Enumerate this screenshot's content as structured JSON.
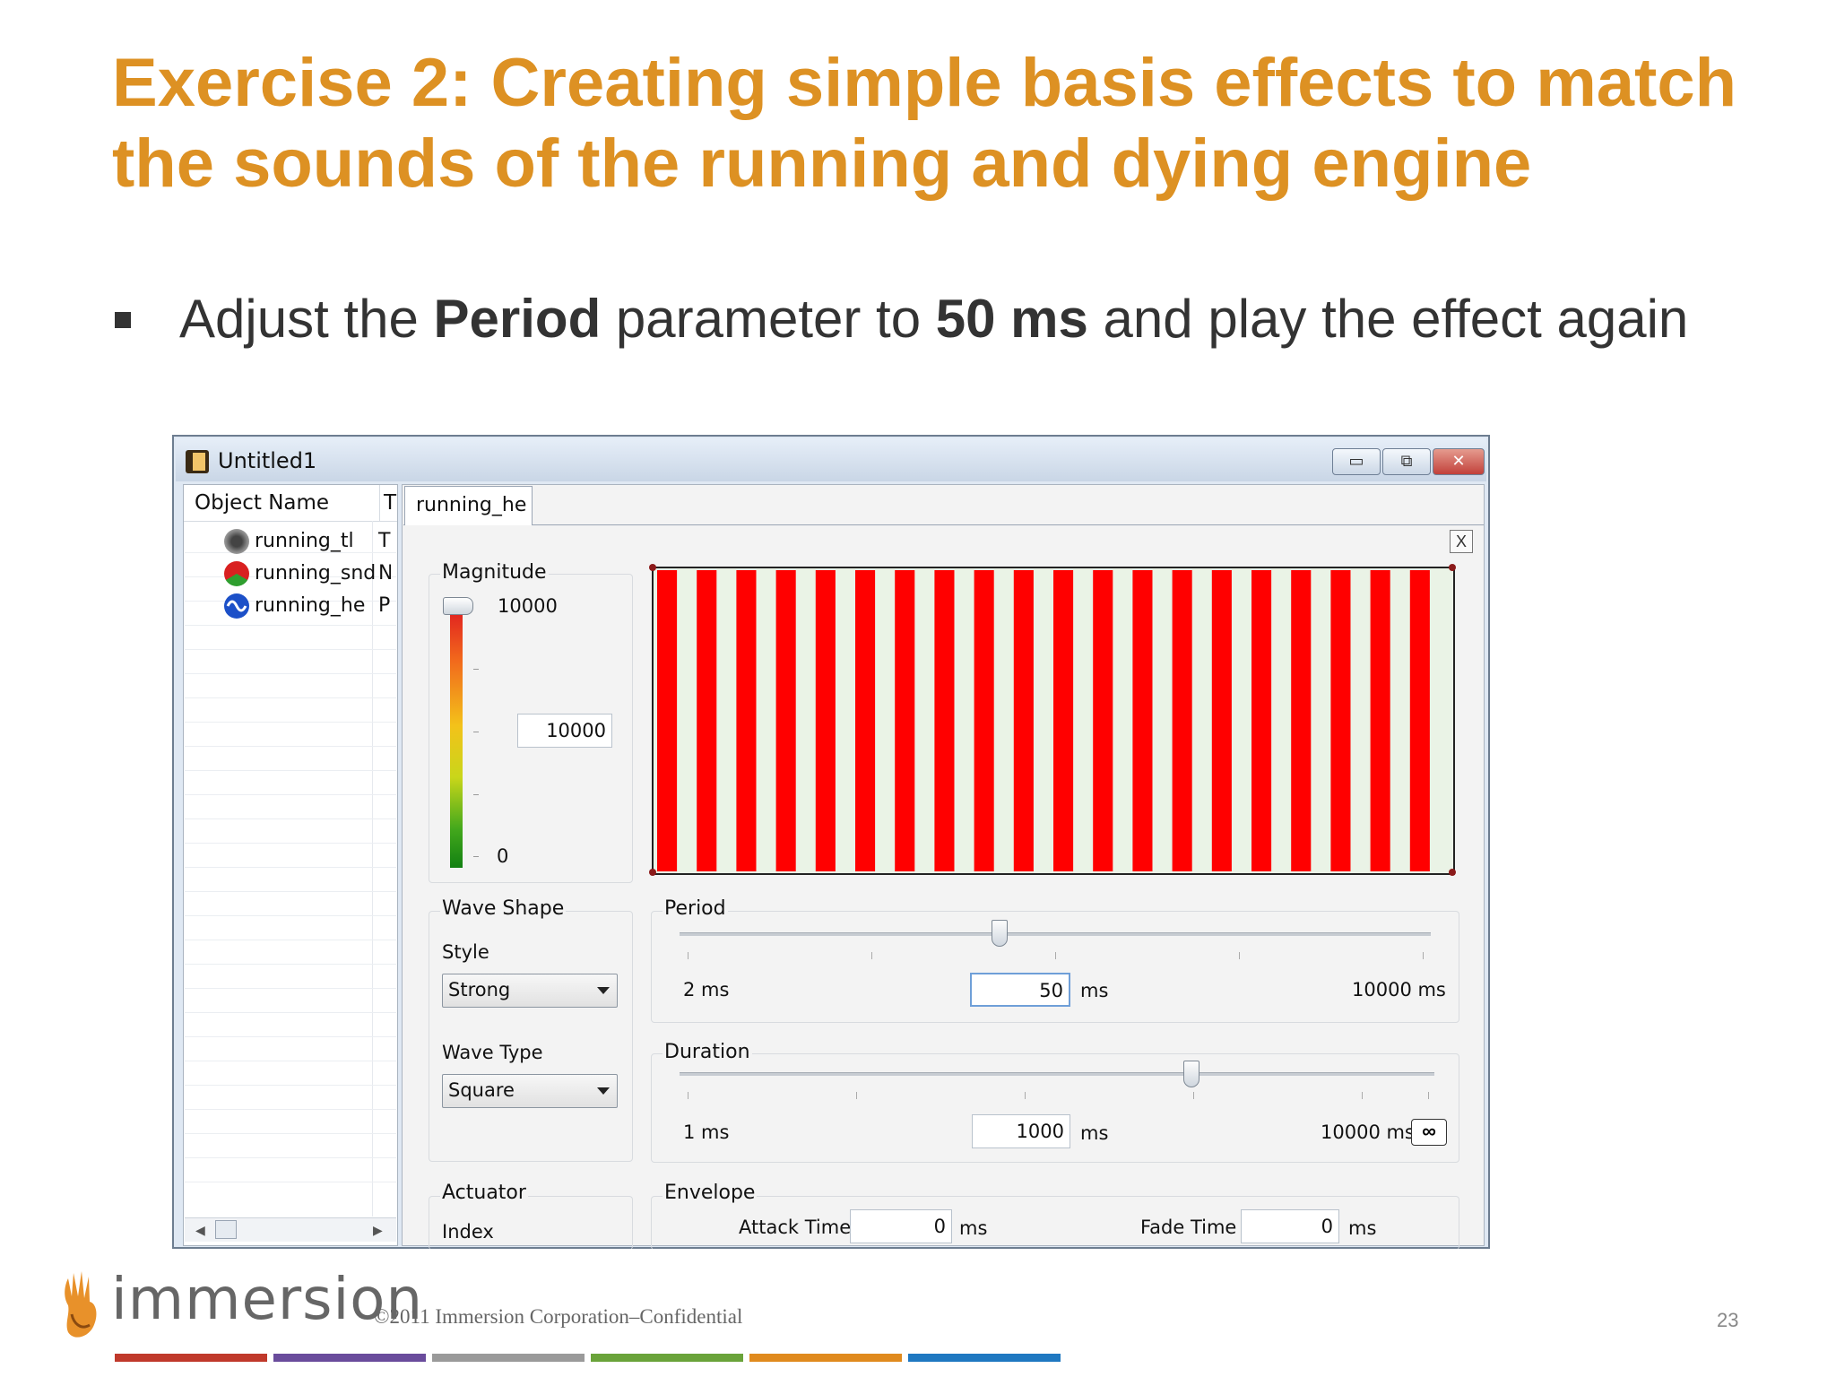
{
  "slide": {
    "title": "Exercise 2: Creating simple basis effects to match the sounds of the running and dying engine",
    "bullet_pre": "Adjust the ",
    "bullet_b1": "Period",
    "bullet_mid": " parameter to ",
    "bullet_b2": "50 ms",
    "bullet_post": " and play the effect again",
    "page_number": "23",
    "copyright": "©2011 Immersion Corporation–Confidential",
    "logo_text": "immersion"
  },
  "window": {
    "title": "Untitled1",
    "minimize": "▭",
    "maximize": "⧉",
    "close": "✕"
  },
  "object_list": {
    "header_name": "Object Name",
    "header_type": "T",
    "items": [
      {
        "name": "running_tl",
        "type": "T",
        "icon": "speaker-icon"
      },
      {
        "name": "running_snd",
        "type": "N",
        "icon": "sound-icon"
      },
      {
        "name": "running_he",
        "type": "P",
        "icon": "wave-icon"
      }
    ]
  },
  "editor": {
    "tab": "running_he",
    "close_label": "X",
    "magnitude": {
      "label": "Magnitude",
      "max_label": "10000",
      "min_label": "0",
      "value": "10000",
      "level": 1.0
    },
    "wave_shape": {
      "label": "Wave Shape",
      "style_label": "Style",
      "style_value": "Strong",
      "type_label": "Wave Type",
      "type_value": "Square"
    },
    "period": {
      "label": "Period",
      "min": "2 ms",
      "max": "10000 ms",
      "value": "50",
      "unit": "ms"
    },
    "duration": {
      "label": "Duration",
      "min": "1 ms",
      "max": "10000 ms",
      "value": "1000",
      "unit": "ms",
      "infinite_label": "∞"
    },
    "actuator": {
      "label": "Actuator",
      "index_label": "Index"
    },
    "envelope": {
      "label": "Envelope",
      "attack_label": "Attack Time",
      "attack_value": "0",
      "fade_label": "Fade Time",
      "fade_value": "0",
      "unit": "ms"
    },
    "waveform": {
      "cycles": 20,
      "colors": {
        "high": "#ff0000",
        "low": "#eaf3e6"
      }
    }
  },
  "footer_colors": [
    "#c0392b",
    "#6a4c9c",
    "#9a9a9a",
    "#6aa33a",
    "#e08a1e",
    "#1f78c1"
  ]
}
